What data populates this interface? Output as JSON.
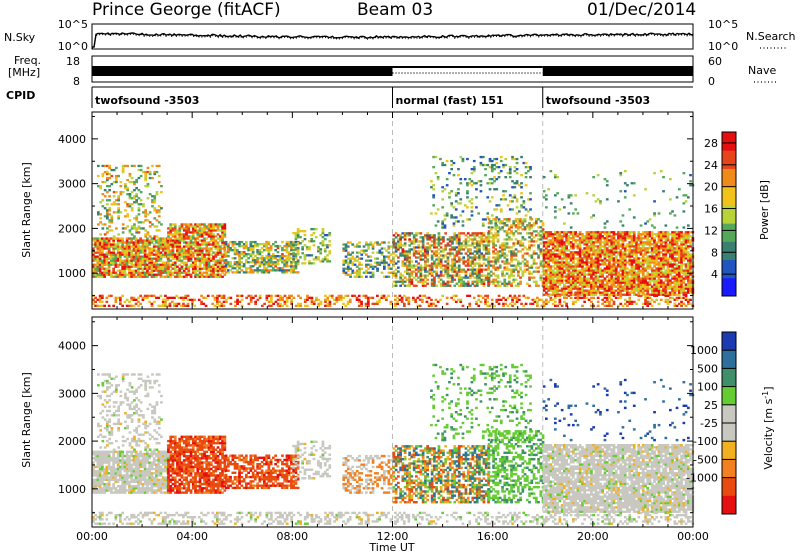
{
  "header": {
    "station": "Prince George (fitACF)",
    "beam": "Beam 03",
    "date": "01/Dec/2014"
  },
  "left_labels": {
    "nsky": "N.Sky",
    "freq_line1": "Freq.",
    "freq_line2": "[MHz]",
    "cpid": "CPID"
  },
  "right_labels": {
    "nsearch": "N.Search",
    "nave": "Nave"
  },
  "noise_panel": {
    "left_ticks": [
      "10^5",
      "10^0"
    ],
    "right_ticks": [
      "10^5",
      "10^0"
    ]
  },
  "freq_panel": {
    "left_ticks": [
      "18",
      "8"
    ],
    "right_ticks": [
      "60",
      "0"
    ]
  },
  "cpid_segments": [
    {
      "label": "twofsound -3503",
      "start_hour": 0,
      "end_hour": 12
    },
    {
      "label": "normal (fast) 151",
      "start_hour": 12,
      "end_hour": 18
    },
    {
      "label": "twofsound -3503",
      "start_hour": 18,
      "end_hour": 24
    }
  ],
  "colors": {
    "power_scale": [
      "#1a1aff",
      "#2255c0",
      "#3a7f70",
      "#55a85a",
      "#b8d23a",
      "#f0c21a",
      "#f08a1a",
      "#e8441a",
      "#e60f0f"
    ],
    "velocity_scale": [
      "#1c3bb3",
      "#2f6f9c",
      "#3f8f6a",
      "#66cc33",
      "#c8c8c0",
      "#c8c8c0",
      "#f0b020",
      "#f08020",
      "#e84a10",
      "#e60f0f"
    ]
  },
  "chart_data": [
    {
      "type": "heatmap",
      "title": "Power",
      "xlabel": "Time UT",
      "ylabel": "Slant Range [km]",
      "x_ticks": [
        "00:00",
        "04:00",
        "08:00",
        "12:00",
        "16:00",
        "20:00",
        "00:00"
      ],
      "y_ticks": [
        "1000",
        "2000",
        "3000",
        "4000"
      ],
      "xlim": [
        0,
        24
      ],
      "ylim": [
        200,
        4600
      ],
      "colorbar_label": "Power [dB]",
      "colorbar_ticks": [
        "4",
        "8",
        "12",
        "16",
        "20",
        "24",
        "28"
      ],
      "colorbar_range": [
        0,
        30
      ]
    },
    {
      "type": "heatmap",
      "title": "Velocity",
      "xlabel": "Time UT",
      "ylabel": "Slant Range [km]",
      "x_ticks": [
        "00:00",
        "04:00",
        "08:00",
        "12:00",
        "16:00",
        "20:00",
        "00:00"
      ],
      "y_ticks": [
        "1000",
        "2000",
        "3000",
        "4000"
      ],
      "xlim": [
        0,
        24
      ],
      "ylim": [
        200,
        4600
      ],
      "colorbar_label": "Velocity [m s^-1]",
      "colorbar_ticks": [
        "1000",
        "500",
        "100",
        "25",
        "-25",
        "-100",
        "-500",
        "-1000"
      ]
    }
  ]
}
